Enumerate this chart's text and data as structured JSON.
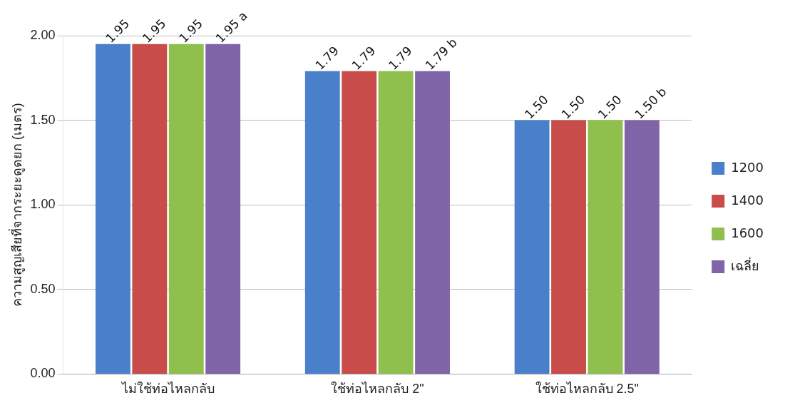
{
  "chart_data": {
    "type": "bar",
    "ylabel": "ความสูญเสียที่จากระยะดูดยก (เมตร)",
    "categories": [
      "ไม่ใช้ท่อไหลกลับ",
      "ใช้ท่อไหลกลับ 2\"",
      "ใช้ท่อไหลกลับ 2.5\""
    ],
    "series": [
      {
        "name": "1200",
        "color": "#4a7fc9",
        "values": [
          1.95,
          1.79,
          1.5
        ],
        "value_labels": [
          "1.95",
          "1.79",
          "1.50"
        ]
      },
      {
        "name": "1400",
        "color": "#c84d4a",
        "values": [
          1.95,
          1.79,
          1.5
        ],
        "value_labels": [
          "1.95",
          "1.79",
          "1.50"
        ]
      },
      {
        "name": "1600",
        "color": "#8fbf4d",
        "values": [
          1.95,
          1.79,
          1.5
        ],
        "value_labels": [
          "1.95",
          "1.79",
          "1.50"
        ]
      },
      {
        "name": "เฉลี่ย",
        "color": "#8064a8",
        "values": [
          1.95,
          1.79,
          1.5
        ],
        "value_labels": [
          "1.95 a",
          "1.79 b",
          "1.50 b"
        ]
      }
    ],
    "ylim": [
      0,
      2
    ],
    "yticks": [
      {
        "value": 0,
        "label": "0.00"
      },
      {
        "value": 0.5,
        "label": "0.50"
      },
      {
        "value": 1,
        "label": "1.00"
      },
      {
        "value": 1.5,
        "label": "1.50"
      },
      {
        "value": 2,
        "label": "2.00"
      }
    ],
    "grid": "y",
    "legend": "right"
  }
}
